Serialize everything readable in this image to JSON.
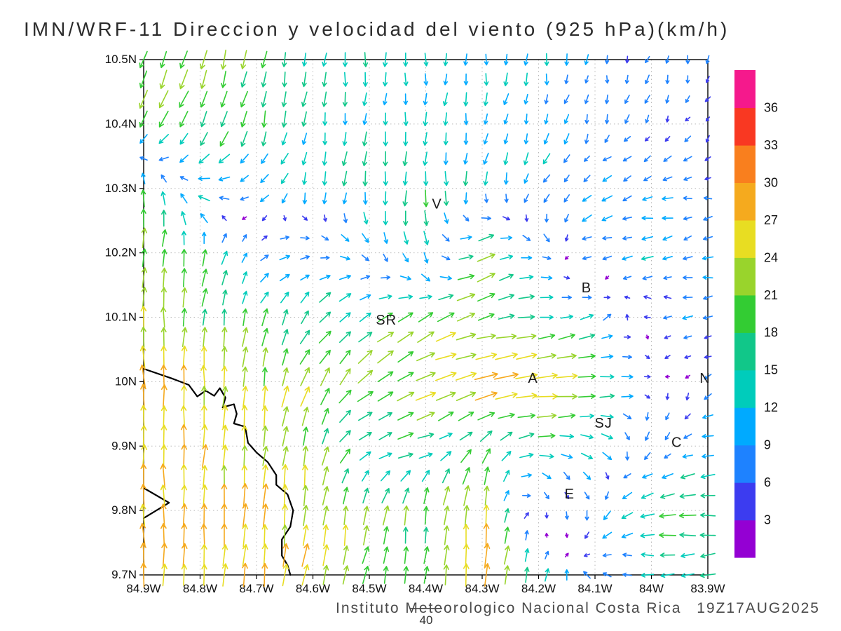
{
  "title": "IMN/WRF-11 Direccion y velocidad del viento (925 hPa)(km/h)",
  "footer": {
    "institute": "Instituto Meteorologico Nacional Costa Rica",
    "timestamp": "19Z17AUG2025",
    "reference_value": "40"
  },
  "chart_data": {
    "type": "vector_field",
    "model": "IMN/WRF-11",
    "variable": "Direccion y velocidad del viento",
    "level": "925 hPa",
    "units": "km/h",
    "valid_time": "19Z17AUG2025",
    "lon_range": [
      -84.9,
      -83.9
    ],
    "lat_range": [
      9.7,
      10.5
    ],
    "lon_ticks": [
      "84.9W",
      "84.8W",
      "84.7W",
      "84.6W",
      "84.5W",
      "84.4W",
      "84.3W",
      "84.2W",
      "84.1W",
      "84W",
      "83.9W"
    ],
    "lat_ticks": [
      "10.5N",
      "10.4N",
      "10.3N",
      "10.2N",
      "10.1N",
      "10N",
      "9.9N",
      "9.8N",
      "9.7N"
    ],
    "grid_step_deg": 0.1,
    "speed_levels": [
      3,
      6,
      9,
      12,
      15,
      18,
      21,
      24,
      27,
      30,
      33,
      36
    ],
    "palette_bottom_to_top": [
      "#9400d3",
      "#3c3cf0",
      "#1e82ff",
      "#00aaff",
      "#00ccbb",
      "#11c789",
      "#33cc33",
      "#99d42c",
      "#e8dd22",
      "#f5aa1e",
      "#f97f1e",
      "#f93822",
      "#f5198c"
    ],
    "reference_speed_kmh": 40,
    "stations": [
      {
        "label": "V",
        "lon": -84.38,
        "lat": 10.275
      },
      {
        "label": "B",
        "lon": -84.115,
        "lat": 10.145
      },
      {
        "label": "SR",
        "lon": -84.47,
        "lat": 10.095
      },
      {
        "label": "A",
        "lon": -84.21,
        "lat": 10.005
      },
      {
        "label": "SJ",
        "lon": -84.085,
        "lat": 9.935
      },
      {
        "label": "C",
        "lon": -83.955,
        "lat": 9.905
      },
      {
        "label": "E",
        "lon": -84.145,
        "lat": 9.825
      },
      {
        "label": "N",
        "lon": -83.905,
        "lat": 10.005
      }
    ],
    "coastline": [
      [
        [
          -84.9,
          10.02
        ],
        [
          -84.85,
          10.005
        ],
        [
          -84.82,
          9.995
        ],
        [
          -84.805,
          9.977
        ],
        [
          -84.79,
          9.986
        ],
        [
          -84.775,
          9.978
        ],
        [
          -84.765,
          9.99
        ],
        [
          -84.755,
          9.975
        ],
        [
          -84.76,
          9.96
        ],
        [
          -84.74,
          9.965
        ],
        [
          -84.735,
          9.95
        ],
        [
          -84.74,
          9.935
        ],
        [
          -84.72,
          9.93
        ],
        [
          -84.715,
          9.905
        ],
        [
          -84.7,
          9.89
        ],
        [
          -84.68,
          9.875
        ],
        [
          -84.665,
          9.855
        ],
        [
          -84.665,
          9.84
        ],
        [
          -84.645,
          9.825
        ],
        [
          -84.635,
          9.8
        ],
        [
          -84.64,
          9.775
        ],
        [
          -84.655,
          9.755
        ],
        [
          -84.655,
          9.73
        ],
        [
          -84.645,
          9.715
        ],
        [
          -84.64,
          9.7
        ]
      ],
      [
        [
          -84.9,
          9.835
        ],
        [
          -84.855,
          9.812
        ],
        [
          -84.9,
          9.788
        ]
      ]
    ],
    "wind_grid": {
      "lons": [
        -84.9,
        -84.8,
        -84.7,
        -84.6,
        -84.5,
        -84.4,
        -84.3,
        -84.2,
        -84.1,
        -84.0,
        -83.9
      ],
      "lats": [
        10.5,
        10.4,
        10.3,
        10.2,
        10.1,
        10.0,
        9.9,
        9.8,
        9.7
      ],
      "uv_kmh": [
        [
          [
            -8,
            -20
          ],
          [
            -6,
            -20
          ],
          [
            -4,
            -19
          ],
          [
            -2,
            -15
          ],
          [
            0,
            -14
          ],
          [
            0,
            -13
          ],
          [
            -1,
            -12
          ],
          [
            -1,
            -11
          ],
          [
            -1,
            -8
          ],
          [
            -2,
            -7
          ],
          [
            -1,
            -5
          ]
        ],
        [
          [
            -10,
            -18
          ],
          [
            -8,
            -18
          ],
          [
            -4,
            -17
          ],
          [
            -2,
            -14
          ],
          [
            -1,
            -13
          ],
          [
            -1,
            -12
          ],
          [
            -2,
            -11
          ],
          [
            -3,
            -10
          ],
          [
            -2,
            -7
          ],
          [
            -3,
            -6
          ],
          [
            -2,
            -4
          ]
        ],
        [
          [
            0,
            18
          ],
          [
            -12,
            2
          ],
          [
            -10,
            -6
          ],
          [
            -3,
            -12
          ],
          [
            -2,
            -16
          ],
          [
            0,
            -17
          ],
          [
            -2,
            -12
          ],
          [
            -5,
            -9
          ],
          [
            -8,
            -5
          ],
          [
            -9,
            -2
          ],
          [
            -7,
            -1
          ]
        ],
        [
          [
            2,
            22
          ],
          [
            3,
            18
          ],
          [
            8,
            4
          ],
          [
            10,
            2
          ],
          [
            6,
            -6
          ],
          [
            2,
            -14
          ],
          [
            20,
            12
          ],
          [
            8,
            -4
          ],
          [
            -10,
            -3
          ],
          [
            -10,
            -2
          ],
          [
            -8,
            -2
          ]
        ],
        [
          [
            0,
            24
          ],
          [
            2,
            20
          ],
          [
            4,
            18
          ],
          [
            10,
            12
          ],
          [
            14,
            10
          ],
          [
            18,
            10
          ],
          [
            20,
            6
          ],
          [
            16,
            2
          ],
          [
            12,
            4
          ],
          [
            -6,
            0
          ],
          [
            -8,
            -1
          ]
        ],
        [
          [
            -2,
            28
          ],
          [
            0,
            26
          ],
          [
            2,
            24
          ],
          [
            10,
            20
          ],
          [
            16,
            14
          ],
          [
            22,
            10
          ],
          [
            28,
            6
          ],
          [
            28,
            4
          ],
          [
            20,
            2
          ],
          [
            4,
            -2
          ],
          [
            -6,
            -4
          ]
        ],
        [
          [
            0,
            26
          ],
          [
            2,
            26
          ],
          [
            2,
            24
          ],
          [
            4,
            22
          ],
          [
            14,
            4
          ],
          [
            16,
            4
          ],
          [
            8,
            14
          ],
          [
            16,
            0
          ],
          [
            12,
            -4
          ],
          [
            -4,
            -8
          ],
          [
            -10,
            -2
          ]
        ],
        [
          [
            -2,
            28
          ],
          [
            0,
            26
          ],
          [
            2,
            28
          ],
          [
            2,
            24
          ],
          [
            4,
            20
          ],
          [
            2,
            20
          ],
          [
            2,
            28
          ],
          [
            2,
            -6
          ],
          [
            -2,
            -10
          ],
          [
            -18,
            -2
          ],
          [
            -18,
            0
          ]
        ],
        [
          [
            0,
            28
          ],
          [
            2,
            26
          ],
          [
            2,
            26
          ],
          [
            6,
            24
          ],
          [
            4,
            20
          ],
          [
            2,
            18
          ],
          [
            2,
            28
          ],
          [
            4,
            16
          ],
          [
            -6,
            2
          ],
          [
            -12,
            0
          ],
          [
            -16,
            -2
          ]
        ]
      ]
    }
  }
}
